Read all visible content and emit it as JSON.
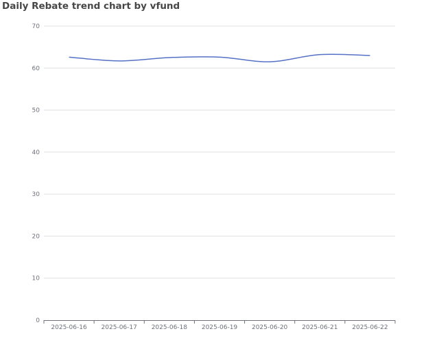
{
  "title": "Daily Rebate trend chart by vfund",
  "chart_data": {
    "type": "line",
    "title": "Daily Rebate trend chart by vfund",
    "xlabel": "",
    "ylabel": "",
    "categories": [
      "2025-06-16",
      "2025-06-17",
      "2025-06-18",
      "2025-06-19",
      "2025-06-20",
      "2025-06-21",
      "2025-06-22"
    ],
    "y_ticks": [
      "0",
      "10",
      "20",
      "30",
      "40",
      "50",
      "60",
      "70"
    ],
    "ylim": [
      0,
      70
    ],
    "grid": true,
    "legend": "none",
    "series": [
      {
        "color": "#5470c6",
        "values": [
          62.6,
          61.7,
          62.5,
          62.6,
          61.5,
          63.2,
          63.0
        ]
      }
    ]
  }
}
